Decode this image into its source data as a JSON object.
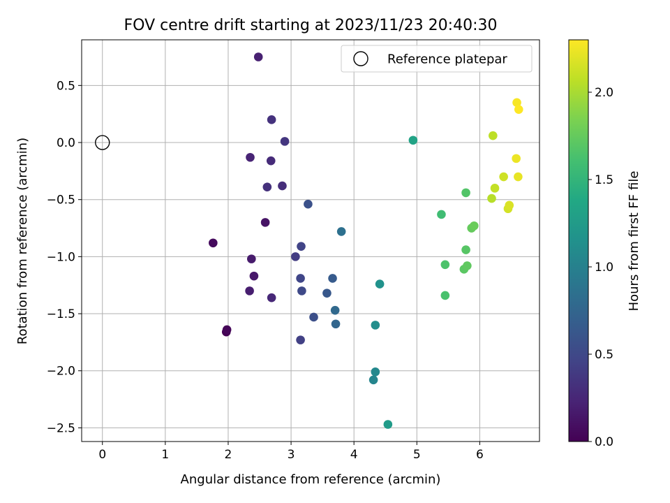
{
  "chart_data": {
    "type": "scatter",
    "title": "FOV centre drift starting at 2023/11/23 20:40:30",
    "xlabel": "Angular distance from reference (arcmin)",
    "ylabel": "Rotation from reference (arcmin)",
    "xlim": [
      -0.33,
      6.95
    ],
    "ylim": [
      -2.62,
      0.9
    ],
    "xticks": [
      0,
      1,
      2,
      3,
      4,
      5,
      6
    ],
    "yticks": [
      -2.5,
      -2.0,
      -1.5,
      -1.0,
      -0.5,
      0.0,
      0.5
    ],
    "xtick_labels": [
      "0",
      "1",
      "2",
      "3",
      "4",
      "5",
      "6"
    ],
    "ytick_labels": [
      "−2.5",
      "−2.0",
      "−1.5",
      "−1.0",
      "−0.5",
      "0.0",
      "0.5"
    ],
    "grid": true,
    "legend": {
      "location": "upper right",
      "entries": [
        {
          "label": "Reference platepar",
          "marker": "open-circle"
        }
      ]
    },
    "reference": {
      "x": 0.0,
      "y": 0.0
    },
    "colormap": "viridis",
    "colorbar": {
      "label": "Hours from first FF file",
      "range": [
        0.0,
        2.3
      ],
      "ticks": [
        0.0,
        0.5,
        1.0,
        1.5,
        2.0
      ],
      "tick_labels": [
        "0.0",
        "0.5",
        "1.0",
        "1.5",
        "2.0"
      ]
    },
    "points": [
      {
        "x": 1.97,
        "y": -1.66,
        "hours": 0.0
      },
      {
        "x": 1.98,
        "y": -1.64,
        "hours": 0.03
      },
      {
        "x": 1.76,
        "y": -0.88,
        "hours": 0.06
      },
      {
        "x": 2.59,
        "y": -0.7,
        "hours": 0.12
      },
      {
        "x": 2.41,
        "y": -1.17,
        "hours": 0.15
      },
      {
        "x": 2.37,
        "y": -1.02,
        "hours": 0.17
      },
      {
        "x": 2.34,
        "y": -1.3,
        "hours": 0.19
      },
      {
        "x": 2.48,
        "y": 0.75,
        "hours": 0.21
      },
      {
        "x": 2.35,
        "y": -0.13,
        "hours": 0.23
      },
      {
        "x": 2.69,
        "y": -1.36,
        "hours": 0.26
      },
      {
        "x": 2.68,
        "y": -0.16,
        "hours": 0.28
      },
      {
        "x": 2.86,
        "y": -0.38,
        "hours": 0.3
      },
      {
        "x": 2.62,
        "y": -0.39,
        "hours": 0.32
      },
      {
        "x": 2.69,
        "y": 0.2,
        "hours": 0.33
      },
      {
        "x": 2.9,
        "y": 0.01,
        "hours": 0.36
      },
      {
        "x": 3.07,
        "y": -1.0,
        "hours": 0.4
      },
      {
        "x": 3.15,
        "y": -1.73,
        "hours": 0.44
      },
      {
        "x": 3.16,
        "y": -0.91,
        "hours": 0.46
      },
      {
        "x": 3.15,
        "y": -1.19,
        "hours": 0.48
      },
      {
        "x": 3.17,
        "y": -1.3,
        "hours": 0.5
      },
      {
        "x": 3.36,
        "y": -1.53,
        "hours": 0.55
      },
      {
        "x": 3.27,
        "y": -0.54,
        "hours": 0.57
      },
      {
        "x": 3.57,
        "y": -1.32,
        "hours": 0.63
      },
      {
        "x": 3.66,
        "y": -1.19,
        "hours": 0.66
      },
      {
        "x": 3.71,
        "y": -1.59,
        "hours": 0.75
      },
      {
        "x": 3.7,
        "y": -1.47,
        "hours": 0.78
      },
      {
        "x": 3.8,
        "y": -0.78,
        "hours": 0.85
      },
      {
        "x": 4.31,
        "y": -2.08,
        "hours": 1.04
      },
      {
        "x": 4.34,
        "y": -2.01,
        "hours": 1.07
      },
      {
        "x": 4.34,
        "y": -1.6,
        "hours": 1.12
      },
      {
        "x": 4.41,
        "y": -1.24,
        "hours": 1.16
      },
      {
        "x": 4.54,
        "y": -2.47,
        "hours": 1.25
      },
      {
        "x": 4.94,
        "y": 0.02,
        "hours": 1.33
      },
      {
        "x": 5.39,
        "y": -0.63,
        "hours": 1.58
      },
      {
        "x": 5.45,
        "y": -1.34,
        "hours": 1.63
      },
      {
        "x": 5.45,
        "y": -1.07,
        "hours": 1.65
      },
      {
        "x": 5.78,
        "y": -0.44,
        "hours": 1.67
      },
      {
        "x": 5.78,
        "y": -0.94,
        "hours": 1.69
      },
      {
        "x": 5.75,
        "y": -1.11,
        "hours": 1.71
      },
      {
        "x": 5.8,
        "y": -1.08,
        "hours": 1.73
      },
      {
        "x": 5.87,
        "y": -0.75,
        "hours": 1.75
      },
      {
        "x": 5.91,
        "y": -0.73,
        "hours": 1.77
      },
      {
        "x": 6.19,
        "y": -0.49,
        "hours": 2.05
      },
      {
        "x": 6.21,
        "y": 0.06,
        "hours": 2.07
      },
      {
        "x": 6.24,
        "y": -0.4,
        "hours": 2.09
      },
      {
        "x": 6.38,
        "y": -0.3,
        "hours": 2.13
      },
      {
        "x": 6.45,
        "y": -0.58,
        "hours": 2.15
      },
      {
        "x": 6.47,
        "y": -0.55,
        "hours": 2.17
      },
      {
        "x": 6.58,
        "y": -0.14,
        "hours": 2.24
      },
      {
        "x": 6.61,
        "y": -0.3,
        "hours": 2.22
      },
      {
        "x": 6.59,
        "y": 0.35,
        "hours": 2.28
      },
      {
        "x": 6.62,
        "y": 0.29,
        "hours": 2.3
      }
    ]
  }
}
